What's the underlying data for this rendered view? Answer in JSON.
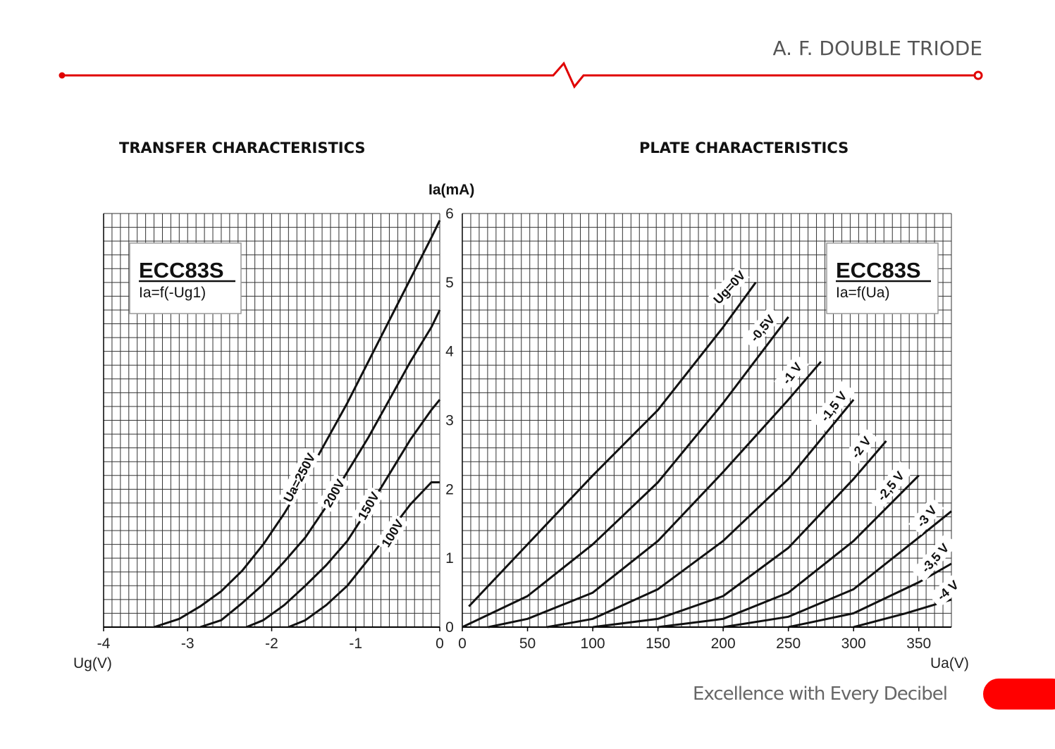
{
  "header": {
    "title": "A. F. DOUBLE TRIODE",
    "accent_color": "#e00000"
  },
  "footer": {
    "tagline": "Excellence with Every Decibel",
    "accent_color": "#ff0000"
  },
  "chart_data": [
    {
      "type": "line",
      "title": "TRANSFER CHARACTERISTICS",
      "box_title": "ECC83S",
      "box_subtitle": "Ia=f(-Ug1)",
      "xlabel": "Ug(V)",
      "ylabel": "Ia(mA)",
      "xlim": [
        -4,
        0
      ],
      "ylim": [
        0,
        6
      ],
      "xticks": [
        "-4",
        "-3",
        "-2",
        "-1",
        "0"
      ],
      "yticks": [
        "0",
        "1",
        "2",
        "3",
        "4",
        "5",
        "6"
      ],
      "grid": true,
      "series": [
        {
          "name": "Ua=250V",
          "x": [
            -3.4,
            -3.1,
            -2.85,
            -2.6,
            -2.35,
            -2.1,
            -1.85,
            -1.6,
            -1.35,
            -1.1,
            -0.85,
            -0.6,
            -0.35,
            -0.1,
            0.0
          ],
          "y": [
            0.0,
            0.12,
            0.3,
            0.52,
            0.82,
            1.2,
            1.65,
            2.15,
            2.7,
            3.25,
            3.85,
            4.45,
            5.05,
            5.65,
            5.9
          ]
        },
        {
          "name": "200V",
          "x": [
            -2.85,
            -2.6,
            -2.35,
            -2.1,
            -1.85,
            -1.6,
            -1.35,
            -1.1,
            -0.85,
            -0.6,
            -0.35,
            -0.1,
            0.0
          ],
          "y": [
            0.0,
            0.1,
            0.35,
            0.62,
            0.95,
            1.3,
            1.75,
            2.25,
            2.75,
            3.3,
            3.85,
            4.35,
            4.6
          ]
        },
        {
          "name": "150V",
          "x": [
            -2.3,
            -2.1,
            -1.85,
            -1.6,
            -1.35,
            -1.1,
            -0.85,
            -0.6,
            -0.35,
            -0.1,
            0.0
          ],
          "y": [
            0.0,
            0.1,
            0.32,
            0.6,
            0.9,
            1.25,
            1.72,
            2.22,
            2.72,
            3.15,
            3.3
          ]
        },
        {
          "name": "100V",
          "x": [
            -1.8,
            -1.6,
            -1.35,
            -1.1,
            -0.85,
            -0.6,
            -0.35,
            -0.1,
            0.0
          ],
          "y": [
            0.0,
            0.1,
            0.32,
            0.6,
            0.98,
            1.38,
            1.78,
            2.1,
            2.1
          ]
        }
      ]
    },
    {
      "type": "line",
      "title": "PLATE CHARACTERISTICS",
      "box_title": "ECC83S",
      "box_subtitle": "Ia=f(Ua)",
      "xlabel": "Ua(V)",
      "xlim": [
        0,
        375
      ],
      "ylim": [
        0,
        6
      ],
      "xticks": [
        "0",
        "50",
        "100",
        "150",
        "200",
        "250",
        "300",
        "350"
      ],
      "grid": true,
      "series": [
        {
          "name": "Ug=0V",
          "x": [
            5,
            50,
            100,
            150,
            200,
            225
          ],
          "y": [
            0.3,
            1.2,
            2.2,
            3.15,
            4.35,
            5.0
          ]
        },
        {
          "name": "-0,5V",
          "x": [
            0,
            50,
            100,
            150,
            200,
            250
          ],
          "y": [
            0.0,
            0.45,
            1.2,
            2.1,
            3.25,
            4.5
          ]
        },
        {
          "name": "-1 V",
          "x": [
            20,
            50,
            100,
            150,
            200,
            250,
            275
          ],
          "y": [
            0.0,
            0.12,
            0.5,
            1.25,
            2.25,
            3.3,
            3.85
          ]
        },
        {
          "name": "-1,5 V",
          "x": [
            65,
            100,
            150,
            200,
            250,
            300
          ],
          "y": [
            0.0,
            0.12,
            0.55,
            1.25,
            2.15,
            3.3
          ]
        },
        {
          "name": "-2 V",
          "x": [
            100,
            150,
            200,
            250,
            300,
            325
          ],
          "y": [
            0.0,
            0.12,
            0.45,
            1.15,
            2.15,
            2.7
          ]
        },
        {
          "name": "-2,5 V",
          "x": [
            150,
            200,
            250,
            300,
            350
          ],
          "y": [
            0.0,
            0.12,
            0.5,
            1.25,
            2.2
          ]
        },
        {
          "name": "-3 V",
          "x": [
            200,
            250,
            300,
            350,
            375
          ],
          "y": [
            0.0,
            0.15,
            0.55,
            1.3,
            1.68
          ]
        },
        {
          "name": "-3,5 V",
          "x": [
            250,
            300,
            350,
            375
          ],
          "y": [
            0.0,
            0.2,
            0.65,
            0.92
          ]
        },
        {
          "name": "-4 V",
          "x": [
            300,
            340,
            375
          ],
          "y": [
            0.0,
            0.2,
            0.4
          ]
        }
      ]
    }
  ]
}
